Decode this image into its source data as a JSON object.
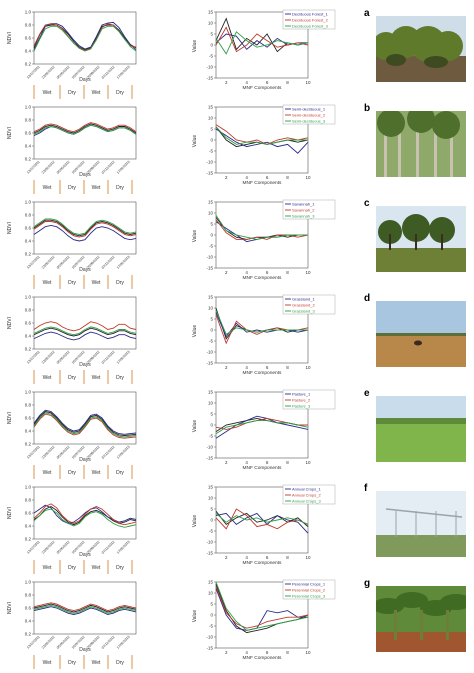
{
  "figure": {
    "ndvi_axis_label": "NDVI",
    "days_axis_label": "Days",
    "value_axis_label": "Value",
    "mnf_axis_label": "MNF Components",
    "ndvi_ticks": [
      "1.0",
      "0.8",
      "0.6",
      "0.4",
      "0.2"
    ],
    "mnf_ticks": [
      "15",
      "10",
      "5",
      "0",
      "-5",
      "-10",
      "-15"
    ],
    "mnf_x_ticks": [
      "2",
      "4",
      "6",
      "8",
      "10"
    ],
    "date_ticks": [
      "13/12/2011",
      "23/02/2012",
      "05/05/2012",
      "16/07/2012",
      "26/09/2012",
      "07/12/2012",
      "17/02/2013"
    ],
    "season_labels": [
      "Wet",
      "Dry",
      "Wet",
      "Dry"
    ],
    "series_colors": [
      "#2a2a8a",
      "#c0392b",
      "#2e9e45"
    ],
    "black_color": "#222222"
  },
  "panels": [
    {
      "letter": "a",
      "legend": [
        "Deciduous Forest_1",
        "Deciduous Forest_2",
        "Deciduous Forest_3"
      ],
      "chart_data": {
        "ndvi": [
          [
            0.45,
            0.65,
            0.78,
            0.8,
            0.8,
            0.75,
            0.66,
            0.55,
            0.46,
            0.42,
            0.45,
            0.6,
            0.78,
            0.8,
            0.8,
            0.72,
            0.6,
            0.5,
            0.45
          ],
          [
            0.42,
            0.6,
            0.78,
            0.82,
            0.82,
            0.78,
            0.68,
            0.57,
            0.48,
            0.43,
            0.46,
            0.62,
            0.8,
            0.83,
            0.84,
            0.76,
            0.62,
            0.5,
            0.42
          ],
          [
            0.48,
            0.66,
            0.8,
            0.82,
            0.8,
            0.74,
            0.63,
            0.52,
            0.45,
            0.41,
            0.44,
            0.58,
            0.76,
            0.82,
            0.8,
            0.7,
            0.58,
            0.48,
            0.46
          ],
          [
            0.4,
            0.58,
            0.74,
            0.78,
            0.78,
            0.72,
            0.62,
            0.52,
            0.44,
            0.4,
            0.43,
            0.57,
            0.74,
            0.78,
            0.78,
            0.7,
            0.58,
            0.47,
            0.4
          ]
        ],
        "mnf": [
          [
            2,
            12,
            -2,
            3,
            0,
            5,
            -3,
            1,
            0,
            1
          ],
          [
            1,
            5,
            4,
            -2,
            2,
            -1,
            3,
            0,
            1,
            1
          ],
          [
            0,
            8,
            -3,
            0,
            5,
            2,
            -1,
            0,
            1,
            0
          ],
          [
            3,
            -4,
            6,
            2,
            -1,
            0,
            2,
            1,
            0,
            1
          ]
        ]
      }
    },
    {
      "letter": "b",
      "legend": [
        "Semi-deciduous_1",
        "Semi-deciduous_2",
        "Semi-deciduous_3"
      ],
      "chart_data": {
        "ndvi": [
          [
            0.6,
            0.64,
            0.7,
            0.72,
            0.7,
            0.66,
            0.62,
            0.6,
            0.64,
            0.7,
            0.74,
            0.72,
            0.68,
            0.64,
            0.66,
            0.7,
            0.7,
            0.66,
            0.6
          ],
          [
            0.56,
            0.6,
            0.66,
            0.7,
            0.68,
            0.64,
            0.6,
            0.58,
            0.62,
            0.68,
            0.72,
            0.7,
            0.66,
            0.62,
            0.64,
            0.68,
            0.68,
            0.64,
            0.58
          ],
          [
            0.62,
            0.66,
            0.72,
            0.74,
            0.72,
            0.68,
            0.64,
            0.62,
            0.66,
            0.72,
            0.76,
            0.74,
            0.7,
            0.66,
            0.68,
            0.72,
            0.72,
            0.68,
            0.62
          ],
          [
            0.58,
            0.62,
            0.68,
            0.7,
            0.68,
            0.64,
            0.6,
            0.58,
            0.62,
            0.68,
            0.72,
            0.7,
            0.66,
            0.62,
            0.64,
            0.68,
            0.68,
            0.64,
            0.58
          ]
        ],
        "mnf": [
          [
            6,
            0,
            -3,
            -2,
            -1,
            -2,
            -1,
            0,
            -1,
            0
          ],
          [
            5,
            2,
            -1,
            -3,
            -2,
            -1,
            -3,
            -2,
            -6,
            -1
          ],
          [
            7,
            4,
            0,
            -1,
            0,
            -2,
            0,
            1,
            0,
            1
          ],
          [
            6,
            1,
            -2,
            -1,
            -1,
            -2,
            -1,
            0,
            0,
            0
          ]
        ]
      }
    },
    {
      "letter": "c",
      "legend": [
        "Savannah_1",
        "Savannah_2",
        "Savannah_3"
      ],
      "chart_data": {
        "ndvi": [
          [
            0.6,
            0.66,
            0.72,
            0.72,
            0.7,
            0.64,
            0.56,
            0.5,
            0.48,
            0.5,
            0.6,
            0.68,
            0.7,
            0.68,
            0.64,
            0.58,
            0.52,
            0.5,
            0.52
          ],
          [
            0.5,
            0.56,
            0.62,
            0.64,
            0.62,
            0.56,
            0.48,
            0.42,
            0.4,
            0.42,
            0.52,
            0.6,
            0.62,
            0.6,
            0.56,
            0.5,
            0.44,
            0.42,
            0.44
          ],
          [
            0.58,
            0.64,
            0.7,
            0.7,
            0.68,
            0.62,
            0.54,
            0.48,
            0.46,
            0.48,
            0.58,
            0.66,
            0.68,
            0.66,
            0.62,
            0.56,
            0.5,
            0.48,
            0.5
          ],
          [
            0.62,
            0.68,
            0.74,
            0.74,
            0.72,
            0.66,
            0.58,
            0.52,
            0.5,
            0.52,
            0.62,
            0.7,
            0.72,
            0.7,
            0.66,
            0.6,
            0.54,
            0.52,
            0.54
          ]
        ],
        "mnf": [
          [
            8,
            2,
            -1,
            -2,
            -1,
            -1,
            0,
            -1,
            0,
            0
          ],
          [
            6,
            3,
            0,
            -3,
            -2,
            -1,
            -1,
            0,
            0,
            0
          ],
          [
            7,
            1,
            -2,
            -2,
            -1,
            -2,
            0,
            0,
            -1,
            0
          ],
          [
            9,
            2,
            0,
            -1,
            -2,
            -1,
            -1,
            0,
            0,
            0
          ]
        ]
      }
    },
    {
      "letter": "d",
      "legend": [
        "Grassland_1",
        "Grassland_2",
        "Grassland_3"
      ],
      "chart_data": {
        "ndvi": [
          [
            0.42,
            0.46,
            0.5,
            0.52,
            0.5,
            0.46,
            0.42,
            0.4,
            0.42,
            0.48,
            0.52,
            0.5,
            0.46,
            0.42,
            0.44,
            0.48,
            0.48,
            0.44,
            0.42
          ],
          [
            0.36,
            0.4,
            0.44,
            0.46,
            0.44,
            0.4,
            0.36,
            0.34,
            0.36,
            0.42,
            0.46,
            0.44,
            0.4,
            0.36,
            0.38,
            0.42,
            0.42,
            0.38,
            0.36
          ],
          [
            0.5,
            0.56,
            0.6,
            0.62,
            0.6,
            0.54,
            0.5,
            0.48,
            0.5,
            0.56,
            0.62,
            0.6,
            0.56,
            0.5,
            0.52,
            0.58,
            0.58,
            0.52,
            0.5
          ],
          [
            0.44,
            0.48,
            0.52,
            0.54,
            0.52,
            0.48,
            0.44,
            0.42,
            0.44,
            0.5,
            0.54,
            0.52,
            0.48,
            0.44,
            0.46,
            0.5,
            0.5,
            0.46,
            0.44
          ]
        ],
        "mnf": [
          [
            10,
            -4,
            2,
            0,
            -1,
            0,
            1,
            -1,
            0,
            0
          ],
          [
            8,
            -3,
            3,
            -1,
            0,
            -1,
            0,
            0,
            -1,
            0
          ],
          [
            7,
            -6,
            4,
            0,
            -2,
            0,
            1,
            0,
            0,
            1
          ],
          [
            9,
            -2,
            1,
            0,
            -1,
            0,
            0,
            0,
            0,
            0
          ]
        ]
      }
    },
    {
      "letter": "e",
      "legend": [
        "Pasture_1",
        "Pasture_2",
        "Pasture_3"
      ],
      "chart_data": {
        "ndvi": [
          [
            0.5,
            0.62,
            0.7,
            0.68,
            0.6,
            0.5,
            0.42,
            0.38,
            0.4,
            0.5,
            0.62,
            0.64,
            0.58,
            0.46,
            0.38,
            0.34,
            0.33,
            0.34,
            0.35
          ],
          [
            0.52,
            0.64,
            0.72,
            0.7,
            0.62,
            0.52,
            0.44,
            0.4,
            0.42,
            0.52,
            0.64,
            0.66,
            0.6,
            0.48,
            0.4,
            0.36,
            0.35,
            0.36,
            0.37
          ],
          [
            0.46,
            0.58,
            0.66,
            0.64,
            0.56,
            0.46,
            0.38,
            0.34,
            0.36,
            0.46,
            0.58,
            0.6,
            0.54,
            0.42,
            0.34,
            0.3,
            0.29,
            0.3,
            0.31
          ],
          [
            0.48,
            0.6,
            0.68,
            0.66,
            0.58,
            0.48,
            0.4,
            0.36,
            0.38,
            0.48,
            0.6,
            0.62,
            0.56,
            0.44,
            0.36,
            0.32,
            0.31,
            0.32,
            0.33
          ]
        ],
        "mnf": [
          [
            -3,
            0,
            1,
            2,
            3,
            2,
            1,
            1,
            0,
            0
          ],
          [
            -6,
            -3,
            0,
            2,
            4,
            3,
            1,
            0,
            -1,
            -2
          ],
          [
            -1,
            -2,
            -1,
            1,
            2,
            3,
            2,
            1,
            0,
            0
          ],
          [
            -4,
            -1,
            0,
            1,
            2,
            2,
            1,
            1,
            0,
            -1
          ]
        ]
      }
    },
    {
      "letter": "f",
      "legend": [
        "Annual Crops_1",
        "Annual Crops_2",
        "Annual Crops_3"
      ],
      "chart_data": {
        "ndvi": [
          [
            0.5,
            0.56,
            0.66,
            0.7,
            0.64,
            0.54,
            0.46,
            0.42,
            0.46,
            0.56,
            0.62,
            0.64,
            0.6,
            0.54,
            0.48,
            0.44,
            0.46,
            0.5,
            0.48
          ],
          [
            0.6,
            0.66,
            0.72,
            0.68,
            0.56,
            0.48,
            0.44,
            0.46,
            0.52,
            0.6,
            0.66,
            0.68,
            0.62,
            0.54,
            0.5,
            0.46,
            0.48,
            0.52,
            0.5
          ],
          [
            0.52,
            0.6,
            0.7,
            0.74,
            0.68,
            0.56,
            0.48,
            0.44,
            0.48,
            0.58,
            0.66,
            0.7,
            0.66,
            0.58,
            0.5,
            0.44,
            0.42,
            0.44,
            0.46
          ],
          [
            0.48,
            0.56,
            0.64,
            0.66,
            0.6,
            0.5,
            0.44,
            0.4,
            0.44,
            0.54,
            0.6,
            0.62,
            0.58,
            0.5,
            0.44,
            0.4,
            0.38,
            0.4,
            0.42
          ]
        ],
        "mnf": [
          [
            4,
            -2,
            1,
            3,
            -1,
            0,
            2,
            -1,
            1,
            -3
          ],
          [
            2,
            3,
            -2,
            1,
            3,
            -2,
            2,
            0,
            -1,
            -6
          ],
          [
            1,
            -4,
            5,
            2,
            -3,
            -2,
            -4,
            -1,
            0,
            -2
          ],
          [
            3,
            -1,
            2,
            0,
            1,
            -1,
            0,
            1,
            0,
            -2
          ]
        ]
      }
    },
    {
      "letter": "g",
      "legend": [
        "Perennial Crops_1",
        "Perennial Crops_2",
        "Perennial Crops_3"
      ],
      "chart_data": {
        "ndvi": [
          [
            0.6,
            0.62,
            0.64,
            0.66,
            0.64,
            0.6,
            0.56,
            0.54,
            0.56,
            0.6,
            0.64,
            0.62,
            0.58,
            0.54,
            0.56,
            0.6,
            0.62,
            0.6,
            0.58
          ],
          [
            0.56,
            0.58,
            0.6,
            0.62,
            0.6,
            0.56,
            0.52,
            0.5,
            0.52,
            0.56,
            0.6,
            0.58,
            0.54,
            0.5,
            0.52,
            0.56,
            0.58,
            0.56,
            0.54
          ],
          [
            0.62,
            0.64,
            0.66,
            0.68,
            0.66,
            0.62,
            0.58,
            0.56,
            0.58,
            0.62,
            0.66,
            0.64,
            0.6,
            0.56,
            0.58,
            0.62,
            0.64,
            0.62,
            0.6
          ],
          [
            0.58,
            0.6,
            0.62,
            0.64,
            0.62,
            0.58,
            0.54,
            0.52,
            0.54,
            0.58,
            0.62,
            0.6,
            0.56,
            0.52,
            0.54,
            0.58,
            0.6,
            0.58,
            0.56
          ]
        ],
        "mnf": [
          [
            14,
            2,
            -5,
            -8,
            -7,
            -6,
            -4,
            -3,
            -2,
            0
          ],
          [
            12,
            0,
            -6,
            -7,
            -6,
            2,
            1,
            2,
            -1,
            -1
          ],
          [
            13,
            1,
            -4,
            -6,
            -5,
            -3,
            -2,
            -1,
            -1,
            0
          ],
          [
            15,
            3,
            -3,
            -7,
            -6,
            -5,
            -4,
            -3,
            -2,
            -1
          ]
        ]
      }
    }
  ]
}
